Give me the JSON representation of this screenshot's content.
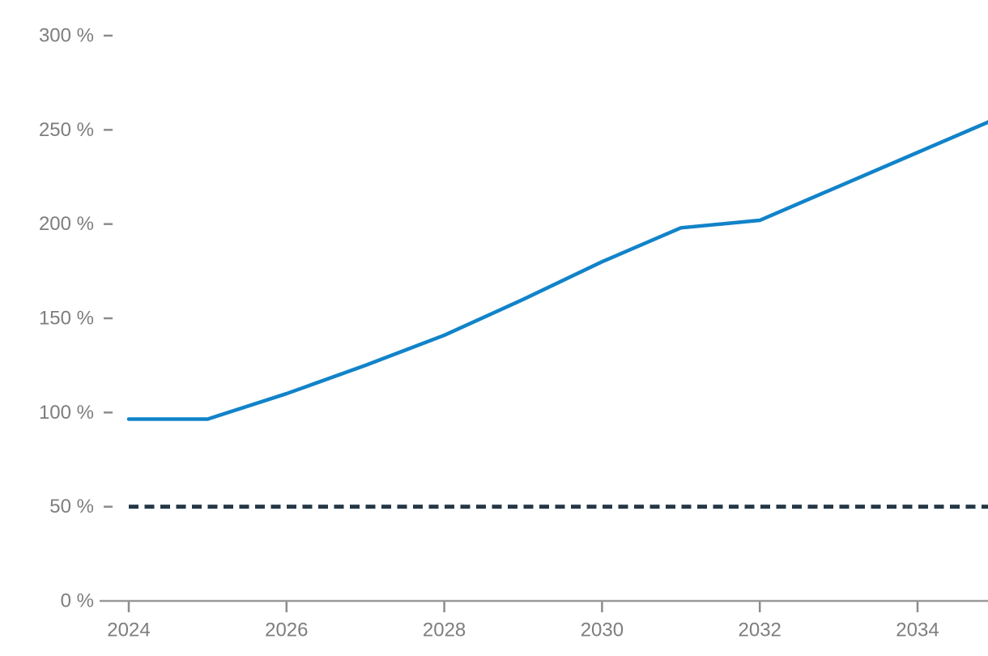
{
  "page": {
    "background": "#ffffff"
  },
  "chart_data": {
    "type": "line",
    "x": [
      2024,
      2025,
      2026,
      2027,
      2028,
      2029,
      2030,
      2031,
      2032,
      2033,
      2034,
      2035
    ],
    "series": [
      {
        "name": "projection",
        "color": "#1183c9",
        "line_width": 4.5,
        "values": [
          96.5,
          96.5,
          110,
          125,
          141,
          160,
          180,
          198,
          202,
          220,
          238,
          256
        ]
      }
    ],
    "threshold": {
      "name": "threshold-50-percent",
      "value": 50,
      "color": "#263746",
      "style": "dashed",
      "line_width": 5
    },
    "title": "",
    "xlabel": "",
    "ylabel": "",
    "ylim": [
      0,
      300
    ],
    "xlim": [
      2024,
      2035
    ],
    "y_ticks": [
      0,
      50,
      100,
      150,
      200,
      250,
      300
    ],
    "y_tick_labels": [
      "0 %",
      "50 %",
      "100 %",
      "150 %",
      "200 %",
      "250 %",
      "300 %"
    ],
    "y_tick_suffix": " %",
    "x_ticks": [
      2024,
      2026,
      2028,
      2030,
      2032,
      2034
    ],
    "x_tick_labels": [
      "2024",
      "2026",
      "2028",
      "2030",
      "2032",
      "2034"
    ],
    "grid": false,
    "legend": false,
    "axis_color": "#999999",
    "tick_mark_color": "#8c8c8c",
    "tick_label_color": "#7e7e7e"
  }
}
